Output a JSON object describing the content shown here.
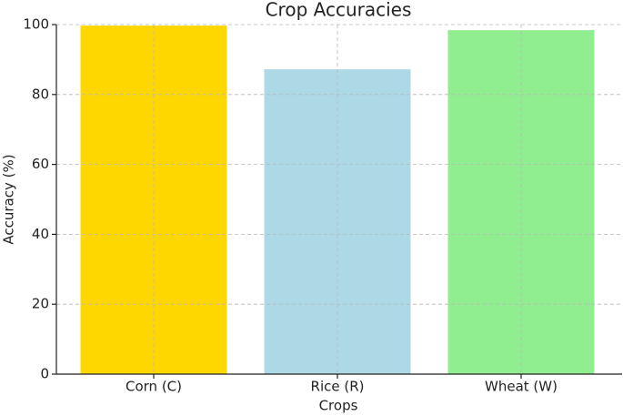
{
  "chart_data": {
    "type": "bar",
    "title": "Crop Accuracies",
    "x_label": "Crops",
    "y_label": "Accuracy (%)",
    "categories": [
      "Corn (C)",
      "Rice (R)",
      "Wheat (W)"
    ],
    "values": [
      99.7,
      87.2,
      98.4
    ],
    "colors": [
      "#ffd700",
      "#add8e6",
      "#90ee90"
    ],
    "ylim": [
      0,
      100
    ],
    "yticks": [
      0,
      20,
      40,
      60,
      80,
      100
    ],
    "grid": true
  }
}
